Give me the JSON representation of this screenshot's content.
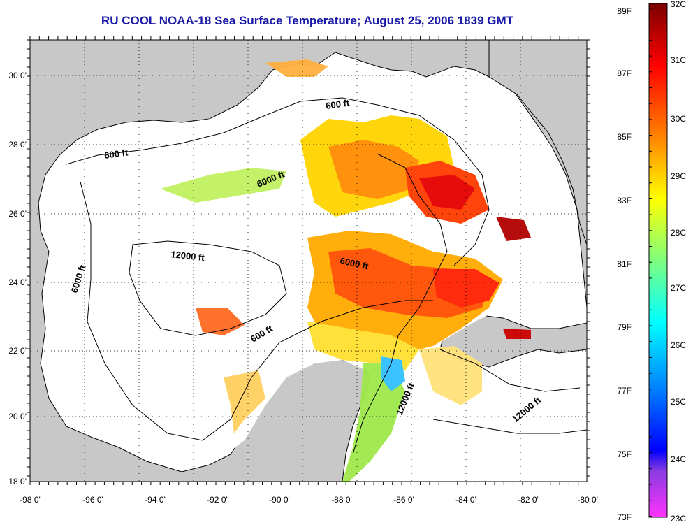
{
  "title": "RU COOL  NOAA-18  Sea Surface Temperature;  August 25, 2006 1839 GMT",
  "map": {
    "lon_labels": [
      "-98 0'",
      "-96 0'",
      "-94 0'",
      "-92 0'",
      "-90 0'",
      "-88 0'",
      "-86 0'",
      "-84 0'",
      "-82 0'",
      "-80 0'"
    ],
    "lat_labels": [
      "30 0'",
      "28 0'",
      "26 0'",
      "24 0'",
      "22 0'",
      "20 0'",
      "18 0'"
    ],
    "contour_labels": [
      "600 ft",
      "600 ft",
      "6000 ft",
      "12000 ft",
      "6000 ft",
      "6000 ft",
      "600 ft",
      "12000 ft",
      "12000 ft"
    ],
    "land_color": "#c8c8c8",
    "ocean_color": "#ffffff"
  },
  "colorbar": {
    "fahrenheit": [
      "89F",
      "87F",
      "85F",
      "83F",
      "81F",
      "79F",
      "77F",
      "75F",
      "73F"
    ],
    "celsius": [
      "32C",
      "31C",
      "30C",
      "29C",
      "28C",
      "27C",
      "26C",
      "25C",
      "24C",
      "23C"
    ]
  }
}
